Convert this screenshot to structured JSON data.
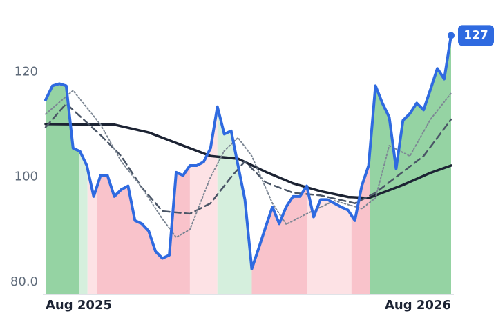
{
  "chart_data": {
    "type": "line",
    "xlim": [
      0,
      59
    ],
    "ylim": [
      77.6,
      128.5
    ],
    "xticks": [
      {
        "value": 0,
        "label": "Aug 2025"
      },
      {
        "value": 59,
        "label": "Aug 2026"
      }
    ],
    "yticks": [
      {
        "value": 80,
        "label": "80.0"
      },
      100,
      120
    ],
    "grid": false,
    "regimes": [
      {
        "start": 0,
        "end": 4.9,
        "color": "#8fd19e"
      },
      {
        "start": 4.9,
        "end": 6.1,
        "color": "#d3eedb"
      },
      {
        "start": 6.1,
        "end": 7.5,
        "color": "#fde0e4"
      },
      {
        "start": 7.5,
        "end": 21,
        "color": "#f9c0c8"
      },
      {
        "start": 21,
        "end": 25,
        "color": "#fde0e4"
      },
      {
        "start": 25,
        "end": 30,
        "color": "#d3eedb"
      },
      {
        "start": 30,
        "end": 38,
        "color": "#f9c0c8"
      },
      {
        "start": 38,
        "end": 44.5,
        "color": "#fde0e4"
      },
      {
        "start": 44.5,
        "end": 47.2,
        "color": "#f9c0c8"
      },
      {
        "start": 47.2,
        "end": 59,
        "color": "#8fd19e"
      }
    ],
    "series": [
      {
        "color": "#2f6ae0",
        "style": "solid",
        "width": 4,
        "x": [
          0,
          1,
          2,
          3,
          4,
          5,
          6,
          7,
          8,
          9,
          10,
          11,
          12,
          13,
          14,
          15,
          16,
          17,
          18,
          19,
          20,
          21,
          22,
          23,
          24,
          25,
          26,
          27,
          28,
          29,
          30,
          31,
          32,
          33,
          34,
          35,
          36,
          37,
          38,
          39,
          40,
          41,
          42,
          43,
          44,
          45,
          46,
          47,
          48,
          49,
          50,
          51,
          52,
          53,
          54,
          55,
          56,
          57,
          58,
          59
        ],
        "values": [
          114.7,
          117.4,
          117.8,
          117.4,
          105.5,
          104.9,
          102.2,
          96.3,
          100.3,
          100.3,
          96.3,
          97.6,
          98.3,
          91.7,
          91.1,
          89.7,
          85.8,
          84.5,
          85.1,
          100.9,
          100.3,
          102.2,
          102.2,
          102.9,
          105.5,
          113.4,
          108.2,
          108.8,
          102.2,
          95.7,
          82.5,
          86.4,
          90.4,
          94.3,
          91.1,
          94.3,
          96.3,
          96.3,
          98.3,
          92.4,
          95.7,
          95.7,
          95.0,
          94.3,
          93.7,
          91.7,
          98.3,
          102.2,
          117.4,
          114.1,
          111.4,
          101.6,
          110.8,
          112.1,
          114.1,
          112.8,
          116.7,
          120.7,
          118.7,
          127
        ]
      },
      {
        "color": "#7d8794",
        "style": "dotted",
        "width": 2,
        "x": [
          0,
          4,
          8,
          11,
          14,
          17,
          19,
          21,
          24,
          26,
          28,
          30,
          33,
          35,
          38,
          42,
          46,
          48,
          50,
          53,
          56,
          59
        ],
        "values": [
          112,
          116.5,
          110,
          103,
          98,
          92,
          88.5,
          90,
          100,
          105,
          107.5,
          104,
          95,
          91,
          93,
          95.5,
          94,
          96,
          106,
          104,
          111,
          116
        ]
      },
      {
        "color": "#4a5566",
        "style": "dashed",
        "width": 2.5,
        "x": [
          0,
          3,
          8,
          11,
          14,
          17,
          21,
          24,
          27,
          29,
          32,
          36,
          40,
          45,
          48,
          51,
          55,
          59
        ],
        "values": [
          109.5,
          114,
          108,
          104,
          98,
          93.5,
          93,
          95,
          100,
          103,
          99,
          97,
          96.5,
          95,
          97,
          100,
          104,
          111
        ]
      },
      {
        "color": "#1c2333",
        "style": "solid",
        "width": 3.5,
        "x": [
          0,
          10,
          15,
          20,
          24,
          28,
          32,
          36,
          40,
          44,
          47,
          52,
          56,
          59
        ],
        "values": [
          110.1,
          110,
          108.5,
          106,
          104,
          103.5,
          101,
          98.8,
          97.3,
          96.2,
          96,
          98.5,
          100.8,
          102.2
        ]
      }
    ]
  }
}
